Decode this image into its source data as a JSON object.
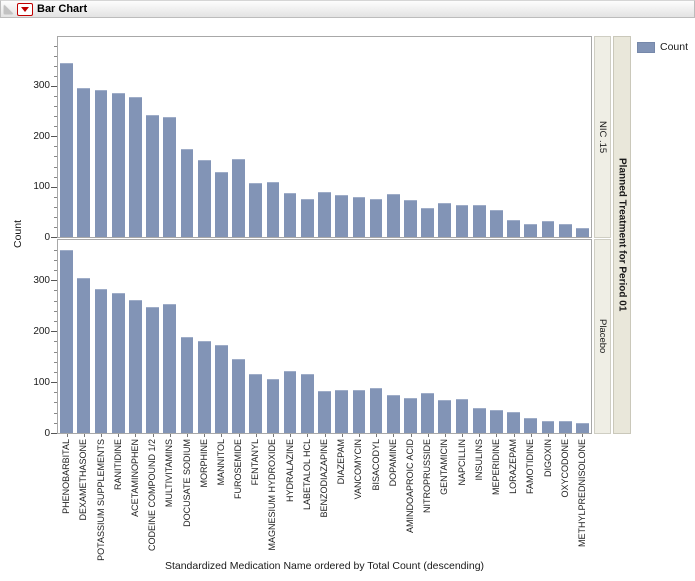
{
  "header": {
    "title": "Bar Chart"
  },
  "legend": {
    "label": "Count",
    "swatch_color": "#8294b6"
  },
  "y_axis": {
    "label": "Count",
    "major_ticks": [
      0,
      100,
      200,
      300
    ],
    "minor_tick_step": 20
  },
  "x_axis": {
    "title": "Standardized Medication Name ordered by Total Count (descending)"
  },
  "facet": {
    "title": "Planned Treatment for Period 01",
    "panels": [
      "NIC .15",
      "Placebo"
    ]
  },
  "chart_data": {
    "type": "bar",
    "title": "Bar Chart",
    "xlabel": "Standardized Medication Name ordered by Total Count (descending)",
    "ylabel": "Count",
    "grid": false,
    "legend_position": "top-right",
    "bar_color": "#8294b6",
    "facet_by": "Planned Treatment for Period 01",
    "ylim": [
      0,
      400
    ],
    "categories": [
      "PHENOBARBITAL",
      "DEXAMETHASONE",
      "POTASSIUM SUPPLEMENTS",
      "RANITIDINE",
      "ACETAMINOPHEN",
      "CODEINE COMPOUND 1/2",
      "MULTIVITAMINS",
      "DOCUSATE SODIUM",
      "MORPHINE",
      "MANNITOL",
      "FUROSEMIDE",
      "FENTANYL",
      "MAGNESIUM HYDROXIDE",
      "HYDRALAZINE",
      "LABETALOL HCL",
      "BENZODIAZAPINE",
      "DIAZEPAM",
      "VANCOMYCIN",
      "BISACODYL",
      "DOPAMINE",
      "AMINDOAPROIC ACID",
      "NITROPRUSSIDE",
      "GENTAMICIN",
      "NAPCILLIN",
      "INSULINS",
      "MEPERIDINE",
      "LORAZEPAM",
      "FAMOTIDINE",
      "DIGOXIN",
      "OXYCODONE",
      "METHYLPREDNISOLONE"
    ],
    "series": [
      {
        "name": "NIC .15",
        "values": [
          345,
          295,
          292,
          285,
          278,
          243,
          238,
          175,
          152,
          130,
          155,
          108,
          110,
          88,
          75,
          90,
          83,
          80,
          75,
          85,
          73,
          57,
          67,
          64,
          63,
          53,
          34,
          26,
          32,
          25,
          18
        ]
      },
      {
        "name": "Placebo",
        "values": [
          360,
          305,
          282,
          275,
          262,
          248,
          253,
          188,
          180,
          173,
          145,
          115,
          106,
          122,
          115,
          83,
          85,
          84,
          89,
          75,
          69,
          78,
          64,
          67,
          49,
          46,
          42,
          30,
          23,
          23,
          20
        ]
      }
    ]
  }
}
